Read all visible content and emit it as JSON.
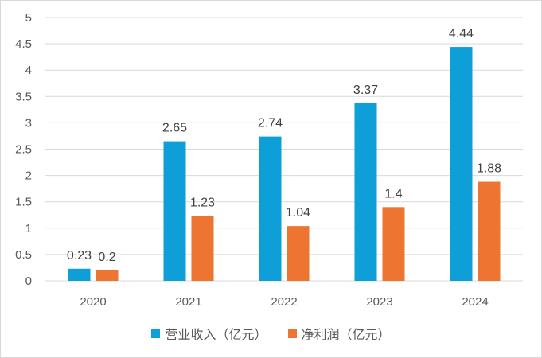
{
  "chart_data": {
    "type": "bar",
    "categories": [
      "2020",
      "2021",
      "2022",
      "2023",
      "2024"
    ],
    "series": [
      {
        "name": "营业收入（亿元）",
        "values": [
          0.23,
          2.65,
          2.74,
          3.37,
          4.44
        ],
        "color": "#0e9fd8"
      },
      {
        "name": "净利润（亿元）",
        "values": [
          0.2,
          1.23,
          1.04,
          1.4,
          1.88
        ],
        "color": "#ed7431"
      }
    ],
    "y_ticks": [
      "0",
      "0.5",
      "1",
      "1.5",
      "2",
      "2.5",
      "3",
      "3.5",
      "4",
      "4.5",
      "5"
    ],
    "ylim": [
      0,
      5
    ],
    "grid": true,
    "legend_position": "bottom",
    "title": "",
    "xlabel": "",
    "ylabel": ""
  }
}
